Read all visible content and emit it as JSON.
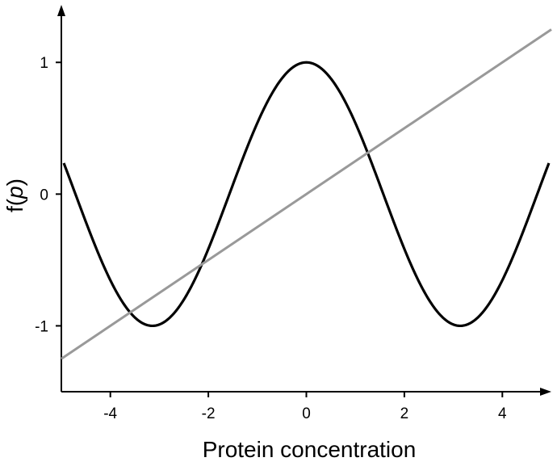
{
  "chart_data": {
    "type": "line",
    "title": "",
    "xlabel": "Protein concentration",
    "ylabel_prefix": "f(",
    "ylabel_var": "p",
    "ylabel_suffix": ")",
    "xlim": [
      -5,
      5
    ],
    "ylim": [
      -1.5,
      1.4
    ],
    "xticks": [
      -4,
      -2,
      0,
      2,
      4
    ],
    "xtick_labels": [
      "-4",
      "-2",
      "0",
      "2",
      "4"
    ],
    "yticks": [
      -1,
      0,
      1
    ],
    "ytick_labels": [
      "-1",
      "0",
      "1"
    ],
    "grid": false,
    "legend": "none",
    "series": [
      {
        "function": "cos",
        "x_range": [
          -4.95,
          4.95
        ],
        "color": "#000000"
      },
      {
        "function": "linear",
        "slope": 0.25,
        "intercept": 0,
        "x_range": [
          -5,
          5
        ],
        "color": "#999999"
      }
    ]
  }
}
